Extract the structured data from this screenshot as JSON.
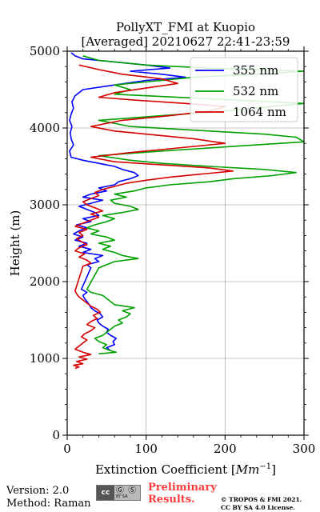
{
  "footer": {
    "version": "Version: 2.0",
    "method": "Method: Raman",
    "cc_badge_text": "cc",
    "cc_badge_icons": "Ⓖ Ⓢ",
    "cc_badge_sub": "BY   SA",
    "preliminary_line1": "Preliminary",
    "preliminary_line2": "Results.",
    "copyright_line1": "© TROPOS & FMI 2021.",
    "copyright_line2": "CC BY SA 4.0 License."
  },
  "chart_data": {
    "type": "line",
    "title": "PollyXT_FMI at Kuopio",
    "subtitle": "[Averaged] 20210627 22:41-23:59",
    "xlabel": "Extinction Coefficient [",
    "xlabel_unit_base": "Mm",
    "xlabel_unit_exp": "−1",
    "xlabel_close": "]",
    "ylabel": "Height (m)",
    "xlim": [
      0,
      300
    ],
    "ylim": [
      0,
      5000
    ],
    "xticks": [
      0,
      100,
      200,
      300
    ],
    "yticks": [
      0,
      1000,
      2000,
      3000,
      4000,
      5000
    ],
    "grid": true,
    "legend_position": "top-right",
    "series": [
      {
        "name": "355 nm",
        "color": "#0000ff",
        "points": [
          [
            55,
            1100
          ],
          [
            50,
            1140
          ],
          [
            60,
            1180
          ],
          [
            58,
            1220
          ],
          [
            62,
            1260
          ],
          [
            55,
            1300
          ],
          [
            50,
            1340
          ],
          [
            52,
            1380
          ],
          [
            45,
            1420
          ],
          [
            40,
            1460
          ],
          [
            38,
            1500
          ],
          [
            45,
            1540
          ],
          [
            42,
            1580
          ],
          [
            35,
            1620
          ],
          [
            30,
            1660
          ],
          [
            28,
            1700
          ],
          [
            25,
            1740
          ],
          [
            22,
            1780
          ],
          [
            20,
            1820
          ],
          [
            25,
            1860
          ],
          [
            18,
            1900
          ],
          [
            30,
            2180
          ],
          [
            25,
            2220
          ],
          [
            40,
            2260
          ],
          [
            35,
            2300
          ],
          [
            45,
            2340
          ],
          [
            20,
            2380
          ],
          [
            30,
            2420
          ],
          [
            15,
            2460
          ],
          [
            25,
            2500
          ],
          [
            10,
            2540
          ],
          [
            20,
            2580
          ],
          [
            8,
            2620
          ],
          [
            15,
            2660
          ],
          [
            25,
            2700
          ],
          [
            12,
            2740
          ],
          [
            30,
            2780
          ],
          [
            20,
            2820
          ],
          [
            40,
            2860
          ],
          [
            35,
            2900
          ],
          [
            25,
            2940
          ],
          [
            15,
            2980
          ],
          [
            30,
            3020
          ],
          [
            45,
            3060
          ],
          [
            20,
            3100
          ],
          [
            30,
            3140
          ],
          [
            50,
            3180
          ],
          [
            40,
            3220
          ],
          [
            60,
            3260
          ],
          [
            65,
            3300
          ],
          [
            80,
            3340
          ],
          [
            90,
            3380
          ],
          [
            85,
            3420
          ],
          [
            70,
            3460
          ],
          [
            60,
            3500
          ],
          [
            40,
            3540
          ],
          [
            20,
            3580
          ],
          [
            5,
            3620
          ],
          [
            3,
            3700
          ],
          [
            8,
            3780
          ],
          [
            5,
            3860
          ],
          [
            4,
            3940
          ],
          [
            6,
            4020
          ],
          [
            3,
            4100
          ],
          [
            5,
            4180
          ],
          [
            8,
            4260
          ],
          [
            6,
            4340
          ],
          [
            10,
            4420
          ],
          [
            20,
            4500
          ],
          [
            60,
            4560
          ],
          [
            100,
            4620
          ],
          [
            150,
            4660
          ],
          [
            120,
            4700
          ],
          [
            80,
            4740
          ],
          [
            130,
            4780
          ],
          [
            100,
            4820
          ],
          [
            60,
            4860
          ],
          [
            20,
            4900
          ],
          [
            10,
            4940
          ],
          [
            5,
            4980
          ]
        ]
      },
      {
        "name": "532 nm",
        "color": "#00a000",
        "points": [
          [
            40,
            1060
          ],
          [
            62,
            1080
          ],
          [
            55,
            1100
          ],
          [
            45,
            1140
          ],
          [
            50,
            1180
          ],
          [
            40,
            1220
          ],
          [
            35,
            1260
          ],
          [
            45,
            1300
          ],
          [
            50,
            1340
          ],
          [
            55,
            1380
          ],
          [
            60,
            1420
          ],
          [
            70,
            1460
          ],
          [
            65,
            1500
          ],
          [
            75,
            1540
          ],
          [
            80,
            1580
          ],
          [
            70,
            1620
          ],
          [
            85,
            1660
          ],
          [
            60,
            1700
          ],
          [
            55,
            1740
          ],
          [
            50,
            1780
          ],
          [
            45,
            1820
          ],
          [
            30,
            1860
          ],
          [
            25,
            1900
          ],
          [
            40,
            2180
          ],
          [
            50,
            2220
          ],
          [
            60,
            2260
          ],
          [
            90,
            2300
          ],
          [
            70,
            2340
          ],
          [
            60,
            2380
          ],
          [
            45,
            2420
          ],
          [
            55,
            2460
          ],
          [
            40,
            2500
          ],
          [
            60,
            2540
          ],
          [
            50,
            2580
          ],
          [
            30,
            2620
          ],
          [
            40,
            2660
          ],
          [
            25,
            2700
          ],
          [
            35,
            2740
          ],
          [
            50,
            2780
          ],
          [
            60,
            2820
          ],
          [
            45,
            2860
          ],
          [
            70,
            2900
          ],
          [
            90,
            2940
          ],
          [
            80,
            2980
          ],
          [
            60,
            3020
          ],
          [
            55,
            3060
          ],
          [
            75,
            3100
          ],
          [
            60,
            3140
          ],
          [
            85,
            3180
          ],
          [
            100,
            3220
          ],
          [
            130,
            3260
          ],
          [
            180,
            3300
          ],
          [
            210,
            3340
          ],
          [
            260,
            3380
          ],
          [
            290,
            3420
          ],
          [
            250,
            3460
          ],
          [
            180,
            3500
          ],
          [
            120,
            3540
          ],
          [
            80,
            3580
          ],
          [
            40,
            3640
          ],
          [
            120,
            3700
          ],
          [
            240,
            3780
          ],
          [
            300,
            3820
          ],
          [
            290,
            3880
          ],
          [
            250,
            3920
          ],
          [
            180,
            3960
          ],
          [
            80,
            4020
          ],
          [
            40,
            4100
          ],
          [
            120,
            4160
          ],
          [
            200,
            4220
          ],
          [
            260,
            4280
          ],
          [
            300,
            4320
          ],
          [
            220,
            4360
          ],
          [
            140,
            4400
          ],
          [
            60,
            4440
          ],
          [
            80,
            4500
          ],
          [
            60,
            4560
          ],
          [
            120,
            4620
          ],
          [
            160,
            4660
          ],
          [
            240,
            4700
          ],
          [
            300,
            4740
          ],
          [
            180,
            4780
          ],
          [
            100,
            4820
          ],
          [
            40,
            4880
          ],
          [
            20,
            4940
          ]
        ]
      },
      {
        "name": "1064 nm",
        "color": "#d40000",
        "points": [
          [
            10,
            870
          ],
          [
            15,
            890
          ],
          [
            8,
            910
          ],
          [
            20,
            930
          ],
          [
            12,
            960
          ],
          [
            25,
            990
          ],
          [
            15,
            1020
          ],
          [
            30,
            1050
          ],
          [
            20,
            1080
          ],
          [
            10,
            1120
          ],
          [
            15,
            1160
          ],
          [
            20,
            1200
          ],
          [
            25,
            1240
          ],
          [
            18,
            1280
          ],
          [
            22,
            1320
          ],
          [
            30,
            1360
          ],
          [
            35,
            1400
          ],
          [
            25,
            1440
          ],
          [
            30,
            1480
          ],
          [
            38,
            1520
          ],
          [
            33,
            1560
          ],
          [
            42,
            1600
          ],
          [
            38,
            1640
          ],
          [
            30,
            1680
          ],
          [
            25,
            1720
          ],
          [
            20,
            1760
          ],
          [
            15,
            1800
          ],
          [
            12,
            1840
          ],
          [
            10,
            1880
          ],
          [
            20,
            2200
          ],
          [
            30,
            2240
          ],
          [
            25,
            2280
          ],
          [
            15,
            2320
          ],
          [
            22,
            2360
          ],
          [
            10,
            2400
          ],
          [
            15,
            2440
          ],
          [
            25,
            2480
          ],
          [
            18,
            2520
          ],
          [
            12,
            2560
          ],
          [
            20,
            2600
          ],
          [
            15,
            2640
          ],
          [
            25,
            2680
          ],
          [
            10,
            2720
          ],
          [
            20,
            2760
          ],
          [
            30,
            2800
          ],
          [
            40,
            2840
          ],
          [
            30,
            2880
          ],
          [
            45,
            2920
          ],
          [
            35,
            2960
          ],
          [
            25,
            3000
          ],
          [
            20,
            3040
          ],
          [
            30,
            3080
          ],
          [
            40,
            3120
          ],
          [
            35,
            3160
          ],
          [
            45,
            3200
          ],
          [
            60,
            3240
          ],
          [
            75,
            3280
          ],
          [
            100,
            3320
          ],
          [
            130,
            3360
          ],
          [
            170,
            3400
          ],
          [
            210,
            3440
          ],
          [
            180,
            3480
          ],
          [
            120,
            3520
          ],
          [
            60,
            3560
          ],
          [
            30,
            3620
          ],
          [
            80,
            3680
          ],
          [
            140,
            3740
          ],
          [
            200,
            3800
          ],
          [
            160,
            3860
          ],
          [
            120,
            3900
          ],
          [
            60,
            3960
          ],
          [
            30,
            4020
          ],
          [
            70,
            4100
          ],
          [
            130,
            4160
          ],
          [
            180,
            4220
          ],
          [
            200,
            4280
          ],
          [
            150,
            4320
          ],
          [
            90,
            4360
          ],
          [
            40,
            4400
          ],
          [
            60,
            4460
          ],
          [
            100,
            4520
          ],
          [
            140,
            4580
          ],
          [
            120,
            4640
          ],
          [
            70,
            4700
          ],
          [
            40,
            4760
          ],
          [
            15,
            4820
          ]
        ]
      }
    ]
  }
}
